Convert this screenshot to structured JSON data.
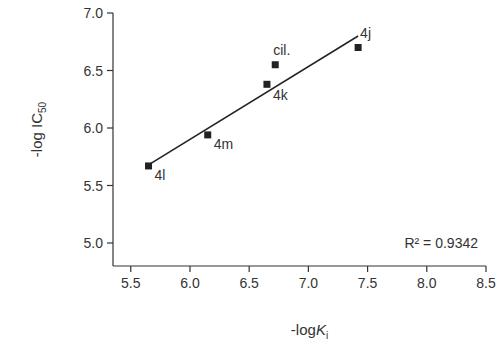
{
  "chart_data": {
    "type": "scatter",
    "x_label": "-logKi",
    "y_label": "-log IC50",
    "annotation": "R² = 0.9342",
    "xlim": [
      5.35,
      8.5
    ],
    "ylim": [
      4.8,
      7.0
    ],
    "xticks": [
      5.5,
      {
        "value": 6,
        "label": "6.0"
      },
      6.5,
      {
        "value": 7,
        "label": "7.0"
      },
      7.5,
      {
        "value": 8,
        "label": "8.0"
      },
      8.5
    ],
    "yticks": [
      {
        "value": 5,
        "label": "5.0"
      },
      5.5,
      {
        "value": 6,
        "label": "6.0"
      },
      6.5,
      {
        "value": 7,
        "label": "7.0"
      }
    ],
    "grid": false,
    "series": [
      {
        "type": "scatter",
        "color": "#222222",
        "marker": "square",
        "labels": [
          "4l",
          "4m",
          "4k",
          "cil.",
          "4j"
        ],
        "x": [
          5.65,
          6.15,
          6.65,
          6.72,
          7.42
        ],
        "values": [
          5.67,
          5.94,
          6.38,
          6.55,
          6.7
        ]
      },
      {
        "type": "line",
        "color": "#222222",
        "line_style": "solid",
        "x": [
          5.65,
          7.42
        ],
        "values": [
          5.68,
          6.8
        ]
      }
    ]
  }
}
